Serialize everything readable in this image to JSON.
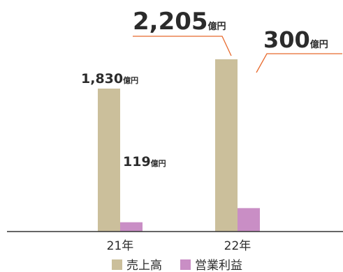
{
  "chart_data": {
    "type": "bar",
    "categories": [
      "21年",
      "22年"
    ],
    "series": [
      {
        "name": "売上高",
        "color": "#cbbf9b",
        "values": [
          1830,
          2205
        ],
        "labels": [
          "1,830",
          "2,205"
        ]
      },
      {
        "name": "営業利益",
        "color": "#c98ec5",
        "values": [
          119,
          300
        ],
        "labels": [
          "119",
          "300"
        ]
      }
    ],
    "unit": "億円",
    "axis_color": "#333333",
    "callout_color": "#e8692c"
  }
}
